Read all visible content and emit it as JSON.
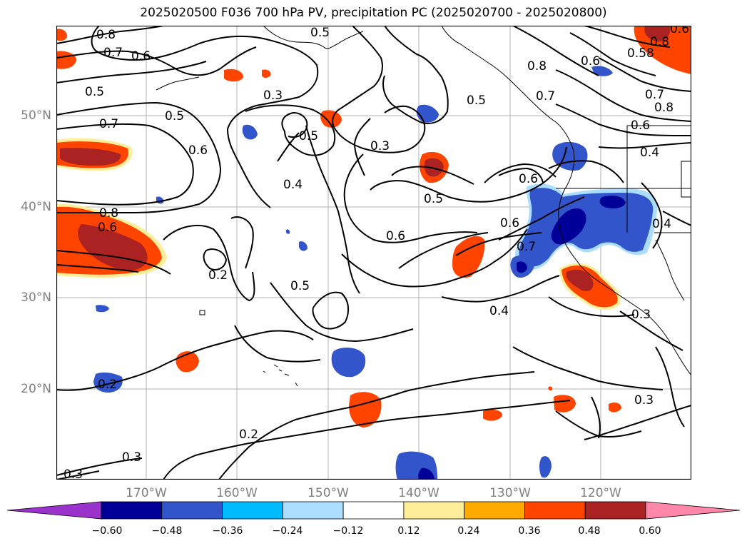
{
  "title": "2025020500 F036 700 hPa PV, precipitation PC (2025020700 - 2025020800)",
  "lat_labels": [
    "50°N",
    "40°N",
    "30°N",
    "20°N"
  ],
  "lon_labels": [
    "170°W",
    "160°W",
    "150°W",
    "140°W",
    "130°W",
    "120°W"
  ],
  "colorbar": {
    "colors": [
      "#9933cc",
      "#000099",
      "#3355cc",
      "#00bbff",
      "#aaddff",
      "#ffffff",
      "#ffee99",
      "#ffaa00",
      "#ff4400",
      "#aa2222",
      "#ff88aa"
    ],
    "ticks": [
      "−0.60",
      "−0.48",
      "−0.36",
      "−0.24",
      "−0.12",
      "0.12",
      "0.24",
      "0.36",
      "0.48",
      "0.60"
    ]
  },
  "contour_labels": [
    "0.8",
    "0.7",
    "0.6",
    "0.5",
    "0.3",
    "0.7",
    "0.5",
    "0.6",
    "0.5",
    "0.3",
    "0.4",
    "0.5",
    "0.6",
    "0.6",
    "0.8",
    "0.6",
    "0.5",
    "0.6",
    "0.7",
    "0.5",
    "0.2",
    "0.5",
    "0.4",
    "0.2",
    "0.2",
    "0.3",
    "0.3",
    "0.3",
    "0.8",
    "0.58",
    "0.7",
    "0.8",
    "0.6",
    "0.4",
    "0.4",
    "0.8",
    "0.6",
    "0.6",
    "0.7",
    "0.3"
  ]
}
